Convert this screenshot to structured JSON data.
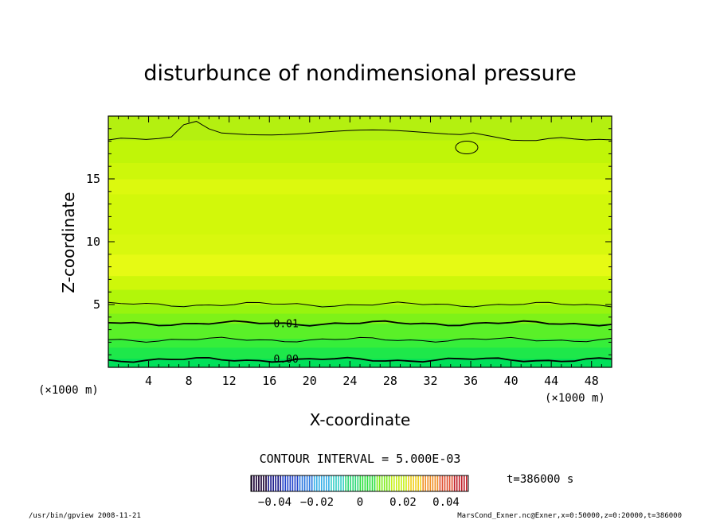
{
  "chart_data": {
    "type": "heatmap",
    "title": "disturbunce of nondimensional pressure",
    "xlabel": "X-coordinate",
    "ylabel": "Z-coordinate",
    "x_unit": "(×1000 m)",
    "y_unit": "(×1000 m)",
    "xlim": [
      0,
      50
    ],
    "ylim": [
      0,
      20
    ],
    "x_ticks": [
      4,
      8,
      12,
      16,
      20,
      24,
      28,
      32,
      36,
      40,
      44,
      48
    ],
    "y_ticks": [
      5,
      10,
      15
    ],
    "contour_interval_label": "CONTOUR INTERVAL = 5.000E-03",
    "contour_labels": [
      {
        "text": "0.01",
        "x": 17.5,
        "z": 3.5
      },
      {
        "text": "0.00",
        "x": 17.5,
        "z": 0.7
      }
    ],
    "contour_levels_z": [
      {
        "z": 18.1,
        "z_hump": 19.6,
        "level": 0.0
      },
      {
        "z": 5.0,
        "level": 0.005
      },
      {
        "z": 3.5,
        "level": 0.01,
        "bold": true
      },
      {
        "z": 2.2,
        "level": 0.005
      },
      {
        "z": 0.6,
        "level": 0.0,
        "bold": true
      }
    ],
    "bands": [
      {
        "z0": 0.0,
        "z1": 0.7,
        "color": "#00e05a"
      },
      {
        "z0": 0.7,
        "z1": 1.6,
        "color": "#1ee84a"
      },
      {
        "z0": 1.6,
        "z1": 2.3,
        "color": "#36ee3a"
      },
      {
        "z0": 2.3,
        "z1": 3.5,
        "color": "#5af028"
      },
      {
        "z0": 3.5,
        "z1": 4.3,
        "color": "#7ef218"
      },
      {
        "z0": 4.3,
        "z1": 5.0,
        "color": "#98f40e"
      },
      {
        "z0": 5.0,
        "z1": 6.2,
        "color": "#b2f60a"
      },
      {
        "z0": 6.2,
        "z1": 7.3,
        "color": "#cef70a"
      },
      {
        "z0": 7.3,
        "z1": 9.0,
        "color": "#e6fa14"
      },
      {
        "z0": 9.0,
        "z1": 10.6,
        "color": "#d8f80e"
      },
      {
        "z0": 10.6,
        "z1": 13.8,
        "color": "#d2f80a"
      },
      {
        "z0": 13.8,
        "z1": 15.0,
        "color": "#dcf90e"
      },
      {
        "z0": 15.0,
        "z1": 16.3,
        "color": "#cdf70a"
      },
      {
        "z0": 16.3,
        "z1": 18.1,
        "color": "#c0f508"
      },
      {
        "z0": 18.1,
        "z1": 20.0,
        "color": "#b4f010"
      }
    ],
    "colorbar": {
      "ticks": [
        "−0.04",
        "−0.02",
        "0",
        "0.02",
        "0.04"
      ],
      "colors": [
        "#1a0033",
        "#1a1a8c",
        "#2244cc",
        "#2a78e0",
        "#38b0e8",
        "#3cd0c8",
        "#30d878",
        "#2ee040",
        "#80ec20",
        "#c8f01c",
        "#f0d020",
        "#f09028",
        "#e05030",
        "#c02028"
      ]
    },
    "time_label": "t=386000 s"
  },
  "footer": {
    "left": "/usr/bin/gpview   2008-11-21",
    "right": "MarsCond_Exner.nc@Exner,x=0:50000,z=0:20000,t=386000"
  }
}
